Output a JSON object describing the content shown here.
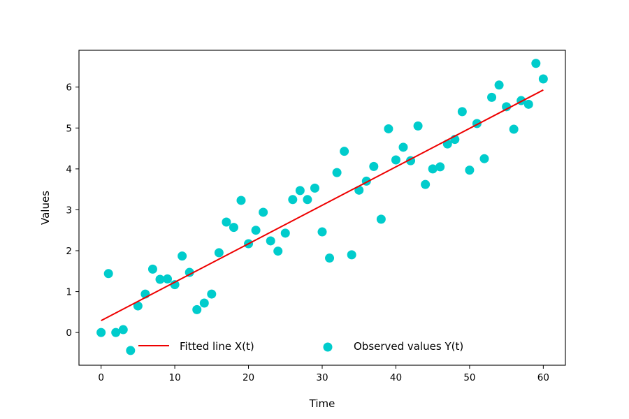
{
  "chart_data": {
    "type": "scatter",
    "xlabel": "Time",
    "ylabel": "Values",
    "xlim": [
      -3,
      63
    ],
    "ylim": [
      -0.8,
      6.9
    ],
    "xticks": [
      0,
      10,
      20,
      30,
      40,
      50,
      60
    ],
    "yticks": [
      0,
      1,
      2,
      3,
      4,
      5,
      6
    ],
    "legend_position": "lower-center",
    "series": [
      {
        "name": "Fitted line X(t)",
        "kind": "line",
        "color": "#ee0000",
        "x": [
          0,
          60
        ],
        "y": [
          0.29,
          5.93
        ]
      },
      {
        "name": "Observed values Y(t)",
        "kind": "scatter",
        "color": "#00cccc",
        "x": [
          0,
          1,
          2,
          3,
          4,
          5,
          6,
          7,
          8,
          9,
          10,
          11,
          12,
          13,
          14,
          15,
          16,
          17,
          18,
          19,
          20,
          21,
          22,
          23,
          24,
          25,
          26,
          27,
          28,
          29,
          30,
          31,
          32,
          33,
          34,
          35,
          36,
          37,
          38,
          39,
          40,
          41,
          42,
          43,
          44,
          45,
          46,
          47,
          48,
          49,
          50,
          51,
          52,
          53,
          54,
          55,
          56,
          57,
          58,
          59,
          60
        ],
        "y": [
          0.0,
          1.44,
          0.0,
          0.07,
          -0.44,
          0.65,
          0.94,
          1.55,
          1.3,
          1.31,
          1.17,
          1.87,
          1.47,
          0.56,
          0.72,
          0.94,
          1.95,
          2.7,
          2.57,
          3.23,
          2.17,
          2.5,
          2.94,
          2.24,
          1.99,
          2.43,
          3.25,
          3.47,
          3.25,
          3.53,
          2.46,
          1.82,
          3.91,
          4.43,
          1.9,
          3.48,
          3.7,
          4.06,
          2.77,
          4.98,
          4.22,
          4.53,
          4.2,
          5.05,
          3.62,
          4.0,
          4.05,
          4.61,
          4.72,
          5.4,
          3.97,
          5.11,
          4.25,
          5.75,
          6.05,
          5.52,
          4.97,
          5.67,
          5.58,
          6.58,
          6.2
        ]
      }
    ]
  }
}
